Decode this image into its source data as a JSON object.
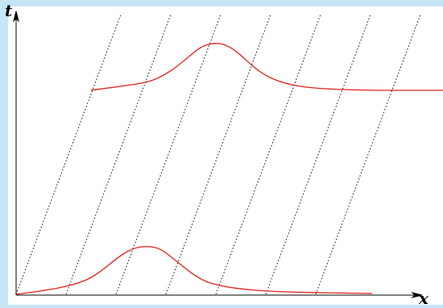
{
  "diagram": {
    "axis_labels": {
      "t": "t",
      "x": "x"
    },
    "colors": {
      "background": "#c6e6f8",
      "panel": "#ffffff",
      "axis": "#000000",
      "characteristics": "#000000",
      "wave": "#e0221a"
    }
  }
}
